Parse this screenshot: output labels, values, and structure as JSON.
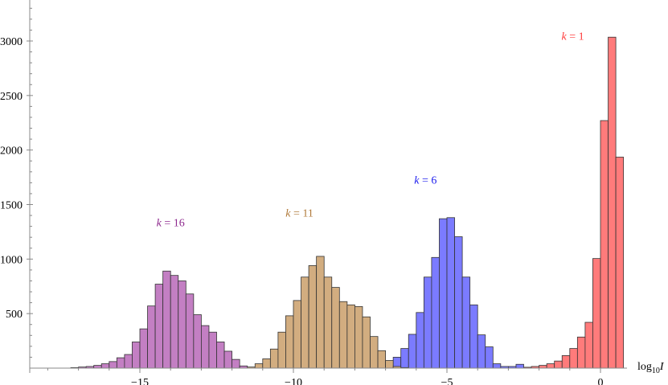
{
  "chart_data": {
    "type": "bar",
    "title": "",
    "xlabel": "log10 I",
    "ylabel": "",
    "xlim": [
      -18.2,
      0.75
    ],
    "ylim": [
      0,
      3380
    ],
    "bin_width": 0.25,
    "x_ticks": [
      -15,
      -10,
      -5,
      0
    ],
    "x_tick_labels": [
      "−15",
      "−10",
      "−5",
      "0"
    ],
    "y_ticks": [
      500,
      1000,
      1500,
      2000,
      2500,
      3000
    ],
    "y_tick_labels": [
      "500",
      "1000",
      "1500",
      "2000",
      "2500",
      "3000"
    ],
    "grid": false,
    "legend": "none",
    "series": [
      {
        "name": "k = 1",
        "label_x": -0.9,
        "label_y": 3010,
        "color": "#ff7b7b",
        "bins": [
          [
            -2.75,
            5
          ],
          [
            -2.5,
            8
          ],
          [
            -2.25,
            15
          ],
          [
            -2.0,
            25
          ],
          [
            -1.75,
            40
          ],
          [
            -1.5,
            65
          ],
          [
            -1.25,
            115
          ],
          [
            -1.0,
            180
          ],
          [
            -0.75,
            285
          ],
          [
            -0.5,
            420
          ],
          [
            -0.25,
            1005
          ],
          [
            0.0,
            2270
          ],
          [
            0.25,
            3035
          ],
          [
            0.5,
            1935
          ]
        ]
      },
      {
        "name": "k = 6",
        "label_x": -5.7,
        "label_y": 1690,
        "color": "#7b7bff",
        "bins": [
          [
            -8.0,
            5
          ],
          [
            -7.75,
            10
          ],
          [
            -7.5,
            20
          ],
          [
            -7.25,
            40
          ],
          [
            -7.0,
            60
          ],
          [
            -6.75,
            100
          ],
          [
            -6.5,
            180
          ],
          [
            -6.25,
            310
          ],
          [
            -6.0,
            510
          ],
          [
            -5.75,
            835
          ],
          [
            -5.5,
            1015
          ],
          [
            -5.25,
            1370
          ],
          [
            -5.0,
            1380
          ],
          [
            -4.75,
            1205
          ],
          [
            -4.5,
            835
          ],
          [
            -4.25,
            580
          ],
          [
            -4.0,
            305
          ],
          [
            -3.75,
            195
          ],
          [
            -3.5,
            40
          ],
          [
            -3.25,
            15
          ],
          [
            -3.0,
            15
          ],
          [
            -2.75,
            35
          ]
        ]
      },
      {
        "name": "k = 11",
        "label_x": -9.8,
        "label_y": 1390,
        "color": "#d2ad80",
        "bins": [
          [
            -11.75,
            5
          ],
          [
            -11.5,
            10
          ],
          [
            -11.25,
            40
          ],
          [
            -11.0,
            85
          ],
          [
            -10.75,
            175
          ],
          [
            -10.5,
            330
          ],
          [
            -10.25,
            480
          ],
          [
            -10.0,
            620
          ],
          [
            -9.75,
            835
          ],
          [
            -9.5,
            940
          ],
          [
            -9.25,
            1025
          ],
          [
            -9.0,
            835
          ],
          [
            -8.75,
            740
          ],
          [
            -8.5,
            610
          ],
          [
            -8.25,
            580
          ],
          [
            -8.0,
            565
          ],
          [
            -7.75,
            470
          ],
          [
            -7.5,
            290
          ],
          [
            -7.25,
            160
          ],
          [
            -7.0,
            70
          ],
          [
            -6.75,
            15
          ],
          [
            -6.5,
            5
          ]
        ]
      },
      {
        "name": "k = 16",
        "label_x": -14.0,
        "label_y": 1300,
        "color": "#c37fc3",
        "bins": [
          [
            -17.25,
            5
          ],
          [
            -17.0,
            10
          ],
          [
            -16.75,
            15
          ],
          [
            -16.5,
            25
          ],
          [
            -16.25,
            40
          ],
          [
            -16.0,
            60
          ],
          [
            -15.75,
            95
          ],
          [
            -15.5,
            125
          ],
          [
            -15.25,
            240
          ],
          [
            -15.0,
            360
          ],
          [
            -14.75,
            570
          ],
          [
            -14.5,
            770
          ],
          [
            -14.25,
            890
          ],
          [
            -14.0,
            850
          ],
          [
            -13.75,
            800
          ],
          [
            -13.5,
            680
          ],
          [
            -13.25,
            490
          ],
          [
            -13.0,
            390
          ],
          [
            -12.75,
            330
          ],
          [
            -12.5,
            240
          ],
          [
            -12.25,
            155
          ],
          [
            -12.0,
            80
          ],
          [
            -11.75,
            20
          ]
        ]
      }
    ]
  }
}
